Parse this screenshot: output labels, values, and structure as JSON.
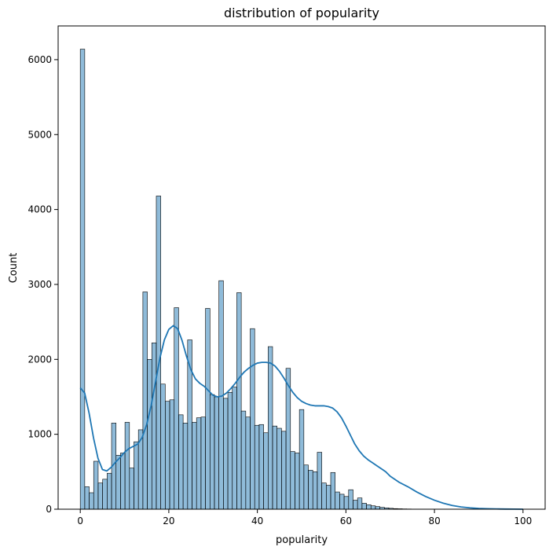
{
  "chart_data": {
    "type": "bar",
    "title": "distribution of popularity",
    "xlabel": "popularity",
    "ylabel": "Count",
    "xlim": [
      -5,
      105
    ],
    "ylim": [
      0,
      6450
    ],
    "xticks": [
      0,
      20,
      40,
      60,
      80,
      100
    ],
    "yticks": [
      0,
      1000,
      2000,
      3000,
      4000,
      5000,
      6000
    ],
    "grid": false,
    "bin_width": 1.0101,
    "bin_start": 0,
    "counts": [
      6140,
      300,
      220,
      640,
      350,
      400,
      480,
      1150,
      720,
      750,
      1160,
      550,
      900,
      1060,
      2900,
      2000,
      2220,
      4180,
      1670,
      1440,
      1460,
      2690,
      1260,
      1150,
      2260,
      1160,
      1220,
      1230,
      2680,
      1530,
      1500,
      3050,
      1480,
      1560,
      1630,
      2890,
      1310,
      1230,
      2410,
      1120,
      1130,
      1020,
      2170,
      1110,
      1080,
      1040,
      1880,
      770,
      750,
      1330,
      590,
      520,
      500,
      760,
      350,
      320,
      490,
      230,
      200,
      170,
      260,
      120,
      150,
      80,
      60,
      45,
      35,
      25,
      18,
      12,
      8,
      6,
      4,
      3,
      2,
      2,
      1,
      1,
      1,
      1,
      1,
      1,
      1,
      1,
      1,
      1,
      1,
      1,
      1,
      1,
      1,
      1,
      1,
      1,
      1,
      1,
      1,
      1,
      1
    ],
    "kde": {
      "x": [
        0,
        1,
        2,
        3,
        4,
        5,
        6,
        7,
        8,
        9,
        10,
        11,
        12,
        13,
        14,
        15,
        16,
        17,
        18,
        19,
        20,
        21,
        22,
        23,
        24,
        25,
        26,
        27,
        28,
        29,
        30,
        31,
        32,
        33,
        34,
        35,
        36,
        37,
        38,
        39,
        40,
        41,
        42,
        43,
        44,
        45,
        46,
        47,
        48,
        49,
        50,
        51,
        52,
        53,
        54,
        55,
        56,
        57,
        58,
        59,
        60,
        61,
        62,
        63,
        64,
        65,
        66,
        67,
        68,
        69,
        70,
        72,
        74,
        76,
        78,
        80,
        82,
        84,
        86,
        88,
        90,
        92,
        94,
        96,
        98,
        100
      ],
      "y": [
        1620,
        1550,
        1280,
        950,
        680,
        530,
        510,
        560,
        630,
        690,
        760,
        810,
        840,
        870,
        960,
        1130,
        1380,
        1700,
        2020,
        2260,
        2400,
        2450,
        2410,
        2250,
        2040,
        1860,
        1740,
        1680,
        1640,
        1580,
        1520,
        1500,
        1510,
        1550,
        1610,
        1680,
        1760,
        1830,
        1880,
        1920,
        1950,
        1960,
        1960,
        1950,
        1910,
        1840,
        1750,
        1650,
        1560,
        1490,
        1440,
        1410,
        1390,
        1380,
        1380,
        1380,
        1370,
        1350,
        1300,
        1220,
        1110,
        990,
        870,
        780,
        710,
        660,
        620,
        580,
        540,
        500,
        440,
        360,
        300,
        230,
        170,
        120,
        80,
        50,
        30,
        18,
        10,
        6,
        4,
        2,
        1,
        0
      ]
    },
    "colors": {
      "bar_fill": "#1f77b4",
      "bar_fill_opacity": 0.5,
      "bar_edge": "#000000",
      "kde_line": "#1f77b4",
      "axis": "#000000"
    }
  }
}
